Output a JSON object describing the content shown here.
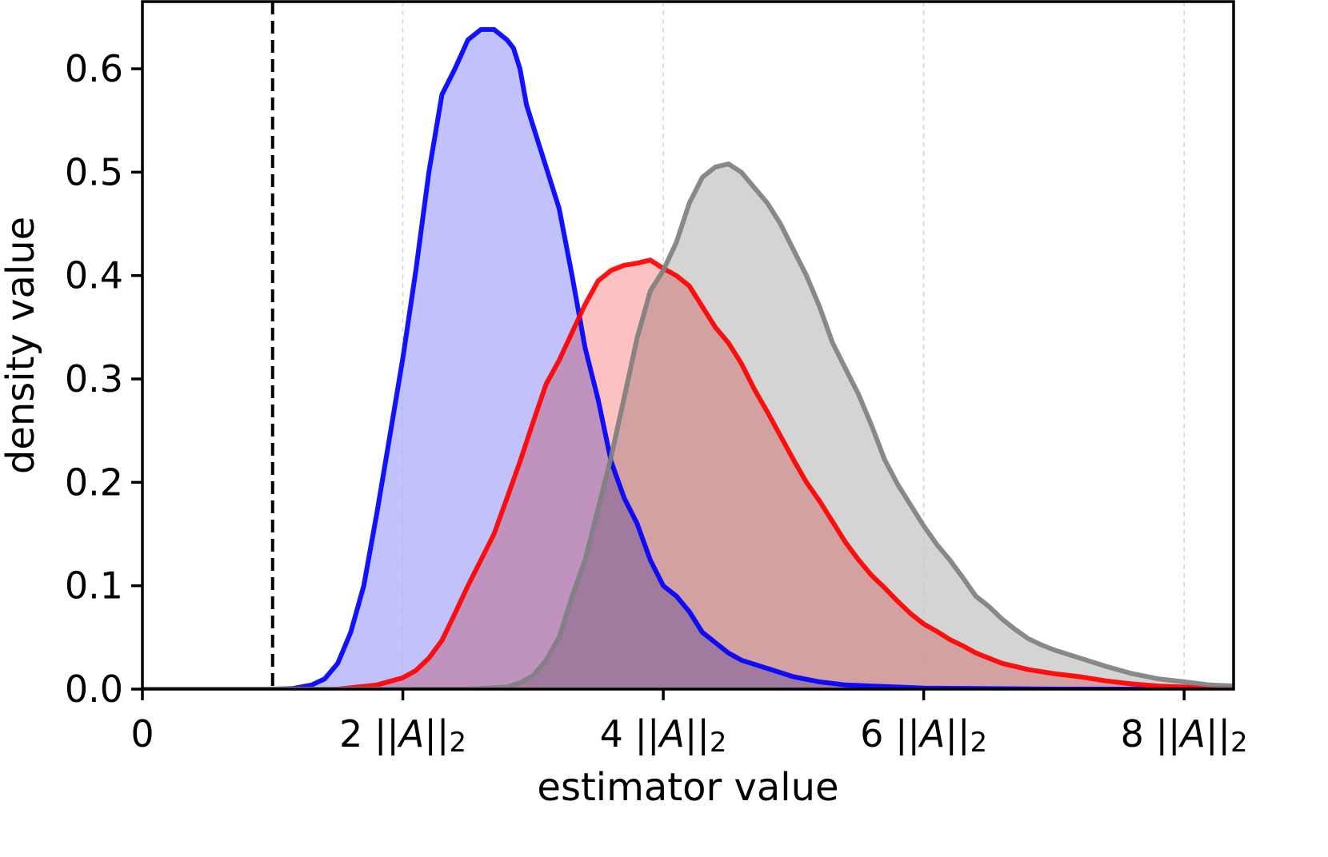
{
  "chart_data": {
    "type": "area",
    "title": "",
    "xlabel": "estimator value",
    "ylabel": "density value",
    "xlim": [
      0,
      8.38
    ],
    "ylim": [
      0,
      0.665
    ],
    "x_ticks": [
      {
        "value": 0,
        "prefix": "0",
        "norm": false
      },
      {
        "value": 2,
        "prefix": "2 ||",
        "norm": true
      },
      {
        "value": 4,
        "prefix": "4 ||",
        "norm": true
      },
      {
        "value": 6,
        "prefix": "6 ||",
        "norm": true
      },
      {
        "value": 8,
        "prefix": "8 ||",
        "norm": true
      }
    ],
    "norm_symbol": "A",
    "norm_close": "||",
    "norm_subscript": "2",
    "y_ticks": [
      {
        "value": 0.0,
        "label": "0.0"
      },
      {
        "value": 0.1,
        "label": "0.1"
      },
      {
        "value": 0.2,
        "label": "0.2"
      },
      {
        "value": 0.3,
        "label": "0.3"
      },
      {
        "value": 0.4,
        "label": "0.4"
      },
      {
        "value": 0.5,
        "label": "0.5"
      },
      {
        "value": 0.6,
        "label": "0.6"
      }
    ],
    "grid": {
      "axis": "x",
      "style": "dashed",
      "at": [
        2,
        4,
        6,
        8
      ]
    },
    "reference_line": {
      "x": 1.0,
      "style": "dashed",
      "color": "#000000"
    },
    "series": [
      {
        "name": "blue",
        "line_color": "#0000ff",
        "fill_color": "#b0b0fb",
        "x": [
          0.0,
          1.0,
          1.15,
          1.3,
          1.4,
          1.5,
          1.6,
          1.7,
          1.8,
          1.9,
          2.0,
          2.1,
          2.2,
          2.3,
          2.4,
          2.5,
          2.6,
          2.7,
          2.8,
          2.85,
          2.9,
          2.95,
          3.0,
          3.1,
          3.2,
          3.3,
          3.4,
          3.5,
          3.6,
          3.7,
          3.8,
          3.9,
          4.0,
          4.1,
          4.2,
          4.3,
          4.4,
          4.5,
          4.6,
          4.8,
          5.0,
          5.2,
          5.4,
          5.6,
          5.8,
          6.0,
          6.5,
          7.0,
          7.5,
          8.0,
          8.38
        ],
        "y": [
          0.0,
          0.0,
          0.0005,
          0.004,
          0.01,
          0.025,
          0.055,
          0.1,
          0.17,
          0.245,
          0.32,
          0.405,
          0.5,
          0.575,
          0.6,
          0.628,
          0.638,
          0.638,
          0.628,
          0.62,
          0.6,
          0.565,
          0.545,
          0.505,
          0.465,
          0.4,
          0.33,
          0.28,
          0.22,
          0.185,
          0.16,
          0.125,
          0.1,
          0.09,
          0.075,
          0.055,
          0.045,
          0.035,
          0.028,
          0.02,
          0.012,
          0.007,
          0.004,
          0.003,
          0.002,
          0.001,
          0.0005,
          0.0,
          0.0,
          0.0,
          0.0
        ]
      },
      {
        "name": "red",
        "line_color": "#ff0000",
        "fill_color": "#fcb0b0",
        "x": [
          0.0,
          1.5,
          1.8,
          2.0,
          2.1,
          2.2,
          2.3,
          2.4,
          2.5,
          2.6,
          2.7,
          2.8,
          2.9,
          3.0,
          3.1,
          3.2,
          3.3,
          3.4,
          3.5,
          3.6,
          3.7,
          3.8,
          3.9,
          4.0,
          4.1,
          4.2,
          4.3,
          4.4,
          4.5,
          4.6,
          4.7,
          4.8,
          4.9,
          5.0,
          5.1,
          5.2,
          5.3,
          5.4,
          5.5,
          5.6,
          5.7,
          5.8,
          5.9,
          6.0,
          6.1,
          6.2,
          6.3,
          6.4,
          6.5,
          6.6,
          6.8,
          7.0,
          7.2,
          7.4,
          7.6,
          7.8,
          8.0,
          8.2,
          8.38
        ],
        "y": [
          0.0,
          0.0,
          0.004,
          0.011,
          0.018,
          0.03,
          0.047,
          0.073,
          0.1,
          0.125,
          0.15,
          0.185,
          0.22,
          0.258,
          0.295,
          0.318,
          0.345,
          0.372,
          0.395,
          0.405,
          0.41,
          0.412,
          0.415,
          0.407,
          0.4,
          0.39,
          0.37,
          0.35,
          0.335,
          0.315,
          0.29,
          0.268,
          0.245,
          0.222,
          0.2,
          0.182,
          0.162,
          0.142,
          0.125,
          0.11,
          0.098,
          0.085,
          0.073,
          0.063,
          0.056,
          0.048,
          0.042,
          0.035,
          0.03,
          0.025,
          0.019,
          0.015,
          0.012,
          0.008,
          0.005,
          0.003,
          0.002,
          0.001,
          0.0005
        ]
      },
      {
        "name": "gray",
        "line_color": "#808080",
        "fill_color": "#c8c8c8",
        "x": [
          0.0,
          2.5,
          2.8,
          2.9,
          3.0,
          3.1,
          3.2,
          3.3,
          3.4,
          3.5,
          3.6,
          3.7,
          3.8,
          3.9,
          4.0,
          4.1,
          4.2,
          4.3,
          4.4,
          4.5,
          4.6,
          4.7,
          4.8,
          4.9,
          5.0,
          5.1,
          5.2,
          5.3,
          5.4,
          5.5,
          5.6,
          5.7,
          5.8,
          5.9,
          6.0,
          6.1,
          6.2,
          6.3,
          6.4,
          6.5,
          6.6,
          6.7,
          6.8,
          6.9,
          7.0,
          7.2,
          7.4,
          7.6,
          7.8,
          8.0,
          8.2,
          8.38
        ],
        "y": [
          0.0,
          0.0,
          0.002,
          0.006,
          0.013,
          0.028,
          0.05,
          0.09,
          0.125,
          0.175,
          0.225,
          0.282,
          0.34,
          0.385,
          0.405,
          0.432,
          0.47,
          0.495,
          0.505,
          0.508,
          0.5,
          0.485,
          0.47,
          0.45,
          0.425,
          0.4,
          0.37,
          0.335,
          0.31,
          0.285,
          0.255,
          0.222,
          0.198,
          0.178,
          0.158,
          0.14,
          0.125,
          0.108,
          0.09,
          0.08,
          0.068,
          0.058,
          0.049,
          0.043,
          0.038,
          0.03,
          0.022,
          0.015,
          0.01,
          0.007,
          0.004,
          0.003
        ]
      }
    ]
  }
}
